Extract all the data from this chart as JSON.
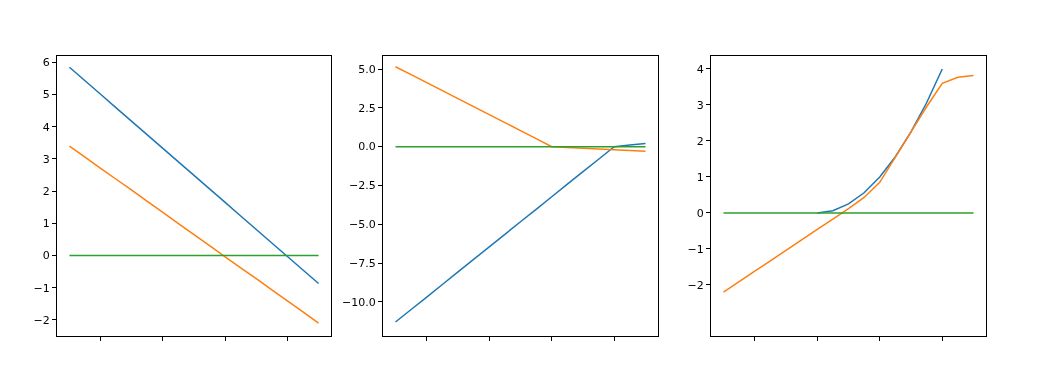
{
  "chart_data": [
    {
      "type": "line",
      "categories": [
        null,
        null,
        null,
        null,
        null,
        null,
        null,
        null,
        null,
        null,
        null,
        null,
        null,
        null,
        null,
        null,
        null
      ],
      "ylim": [
        -2.5,
        6.2
      ],
      "yticks": [
        {
          "value": -2,
          "label": "−2"
        },
        {
          "value": -1,
          "label": "−1"
        },
        0,
        1,
        2,
        3,
        4,
        5,
        6
      ],
      "tick_labels": "y",
      "grid": false,
      "series": [
        {
          "color": "#1f77b4",
          "values": [
            5.85,
            5.43,
            5.01,
            4.59,
            4.17,
            3.75,
            3.33,
            2.91,
            2.49,
            2.07,
            1.65,
            1.23,
            0.81,
            0.39,
            -0.03,
            -0.45,
            -0.87
          ]
        },
        {
          "color": "#ff7f0e",
          "values": [
            3.4,
            3.06,
            2.71,
            2.37,
            2.03,
            1.68,
            1.34,
            0.99,
            0.65,
            0.31,
            -0.04,
            -0.38,
            -0.72,
            -1.07,
            -1.41,
            -1.75,
            -2.1
          ]
        },
        {
          "color": "#2ca02c",
          "values": [
            0,
            0,
            0,
            0,
            0,
            0,
            0,
            0,
            0,
            0,
            0,
            0,
            0,
            0,
            0,
            0,
            0
          ]
        }
      ]
    },
    {
      "type": "line",
      "categories": [
        null,
        null,
        null,
        null,
        null,
        null,
        null,
        null,
        null,
        null,
        null,
        null,
        null,
        null,
        null,
        null,
        null
      ],
      "ylim": [
        -12.2,
        5.84
      ],
      "yticks": [
        {
          "value": -10,
          "label": "−10.0"
        },
        {
          "value": -7.5,
          "label": "−7.5"
        },
        {
          "value": -5,
          "label": "−5.0"
        },
        {
          "value": -2.5,
          "label": "−2.5"
        },
        {
          "value": 0,
          "label": "0.0"
        },
        {
          "value": 2.5,
          "label": "2.5"
        },
        {
          "value": 5,
          "label": "5.0"
        }
      ],
      "tick_labels": "y",
      "grid": false,
      "series": [
        {
          "color": "#1f77b4",
          "values": [
            -11.3,
            -10.49,
            -9.69,
            -8.88,
            -8.07,
            -7.26,
            -6.46,
            -5.65,
            -4.84,
            -4.04,
            -3.23,
            -2.42,
            -1.61,
            -0.81,
            0,
            0.1,
            0.2
          ]
        },
        {
          "color": "#ff7f0e",
          "values": [
            5.15,
            4.64,
            4.12,
            3.61,
            3.09,
            2.58,
            2.06,
            1.55,
            1.03,
            0.52,
            0,
            -0.05,
            -0.1,
            -0.15,
            -0.2,
            -0.25,
            -0.3
          ]
        },
        {
          "color": "#2ca02c",
          "values": [
            0,
            0,
            0,
            0,
            0,
            0,
            0,
            0,
            0,
            0,
            0,
            0,
            0,
            0,
            0,
            0,
            0
          ]
        }
      ]
    },
    {
      "type": "line",
      "categories": [
        null,
        null,
        null,
        null,
        null,
        null,
        null,
        null,
        null,
        null,
        null,
        null,
        null,
        null,
        null,
        null,
        null
      ],
      "ylim": [
        -3.42,
        4.36
      ],
      "yticks": [
        {
          "value": -2,
          "label": "−2"
        },
        {
          "value": -1,
          "label": "−1"
        },
        0,
        1,
        2,
        3,
        4
      ],
      "tick_labels": "y",
      "grid": false,
      "series": [
        {
          "color": "#1f77b4",
          "values": [
            null,
            null,
            null,
            null,
            null,
            null,
            0,
            0.06,
            0.25,
            0.56,
            1,
            1.56,
            2.25,
            3.06,
            4,
            null,
            null
          ]
        },
        {
          "color": "#ff7f0e",
          "values": [
            -2.2,
            -1.91,
            -1.62,
            -1.33,
            -1.04,
            -0.75,
            -0.46,
            -0.17,
            0.12,
            0.43,
            0.85,
            1.55,
            2.25,
            2.95,
            3.6,
            3.77,
            3.82
          ]
        },
        {
          "color": "#2ca02c",
          "values": [
            0,
            0,
            0,
            0,
            0,
            0,
            0,
            0,
            0,
            0,
            0,
            0,
            0,
            0,
            0,
            0,
            0
          ]
        }
      ]
    }
  ]
}
